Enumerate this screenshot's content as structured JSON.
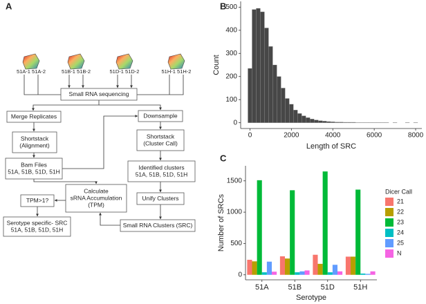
{
  "panel_labels": [
    "A",
    "B",
    "C"
  ],
  "diagram": {
    "samples": [
      "51A-1 51A-2",
      "51B-1 51B-2",
      "51D-1 51D-2",
      "51H-1 51H-2"
    ],
    "nodes": [
      {
        "lines": [
          "Small RNA sequencing"
        ]
      },
      {
        "lines": [
          "Merge Replicates"
        ]
      },
      {
        "lines": [
          "Downsample"
        ]
      },
      {
        "lines": [
          "Shortstack",
          "(Alignment)"
        ]
      },
      {
        "lines": [
          "Shortstack",
          "(Cluster Call)"
        ]
      },
      {
        "lines": [
          "Bam Files",
          "51A, 51B, 51D, 51H"
        ]
      },
      {
        "lines": [
          "Identified clusters",
          "51A, 51B, 51D, 51H"
        ]
      },
      {
        "lines": [
          "Calculate",
          "sRNA Accumulation",
          "(TPM)"
        ]
      },
      {
        "lines": [
          "TPM>1?"
        ]
      },
      {
        "lines": [
          "Unify Clusters"
        ]
      },
      {
        "lines": [
          "Serotype specific- SRC",
          "51A, 51B, 51D, 51H"
        ]
      },
      {
        "lines": [
          "Small RNA Clusters (SRC)"
        ]
      }
    ]
  },
  "chart_data": [
    {
      "type": "histogram",
      "xlabel": "Length of SRC",
      "ylabel": "Count",
      "color": "#474747",
      "bins": [
        -100,
        100,
        300,
        500,
        700,
        900,
        1100,
        1300,
        1500,
        1700,
        1900,
        2100,
        2300,
        2500,
        2700,
        2900,
        3100,
        3300,
        3500,
        3700,
        3900,
        4100,
        4300,
        4500,
        4700,
        4900,
        5100,
        5300,
        5500,
        5700,
        5900,
        6100,
        6300,
        6500,
        6700,
        6900,
        7100,
        7300,
        7500,
        7700,
        7900,
        8100
      ],
      "values": [
        235,
        490,
        495,
        480,
        410,
        330,
        250,
        200,
        150,
        105,
        80,
        55,
        40,
        30,
        22,
        16,
        12,
        9,
        7,
        5,
        4,
        3,
        3,
        2,
        2,
        2,
        1,
        1,
        1,
        1,
        1,
        1,
        1,
        1,
        0,
        1,
        0,
        0,
        1,
        0,
        1
      ],
      "xlim": [
        -450,
        8300
      ],
      "ylim": [
        -25,
        525
      ],
      "xticks": [
        0,
        2000,
        4000,
        6000,
        8000
      ],
      "yticks": [
        0,
        100,
        200,
        300,
        400,
        500
      ]
    },
    {
      "type": "bar",
      "xlabel": "Serotype",
      "ylabel": "Number of SRCs",
      "legend_title": "Dicer Call",
      "legend": "right",
      "categories": [
        "51A",
        "51B",
        "51D",
        "51H"
      ],
      "series": [
        {
          "name": "21",
          "color": "#f8766d",
          "values": [
            240,
            295,
            320,
            290
          ]
        },
        {
          "name": "22",
          "color": "#b79f00",
          "values": [
            215,
            260,
            175,
            290
          ]
        },
        {
          "name": "23",
          "color": "#00ba38",
          "values": [
            1510,
            1350,
            1650,
            1360
          ]
        },
        {
          "name": "24",
          "color": "#00bfc4",
          "values": [
            40,
            40,
            40,
            20
          ]
        },
        {
          "name": "25",
          "color": "#619cff",
          "values": [
            210,
            55,
            160,
            15
          ]
        },
        {
          "name": "N",
          "color": "#f564e3",
          "values": [
            50,
            70,
            55,
            55
          ]
        }
      ],
      "ylim": [
        -80,
        1740
      ],
      "yticks": [
        0,
        500,
        1000,
        1500
      ]
    }
  ]
}
